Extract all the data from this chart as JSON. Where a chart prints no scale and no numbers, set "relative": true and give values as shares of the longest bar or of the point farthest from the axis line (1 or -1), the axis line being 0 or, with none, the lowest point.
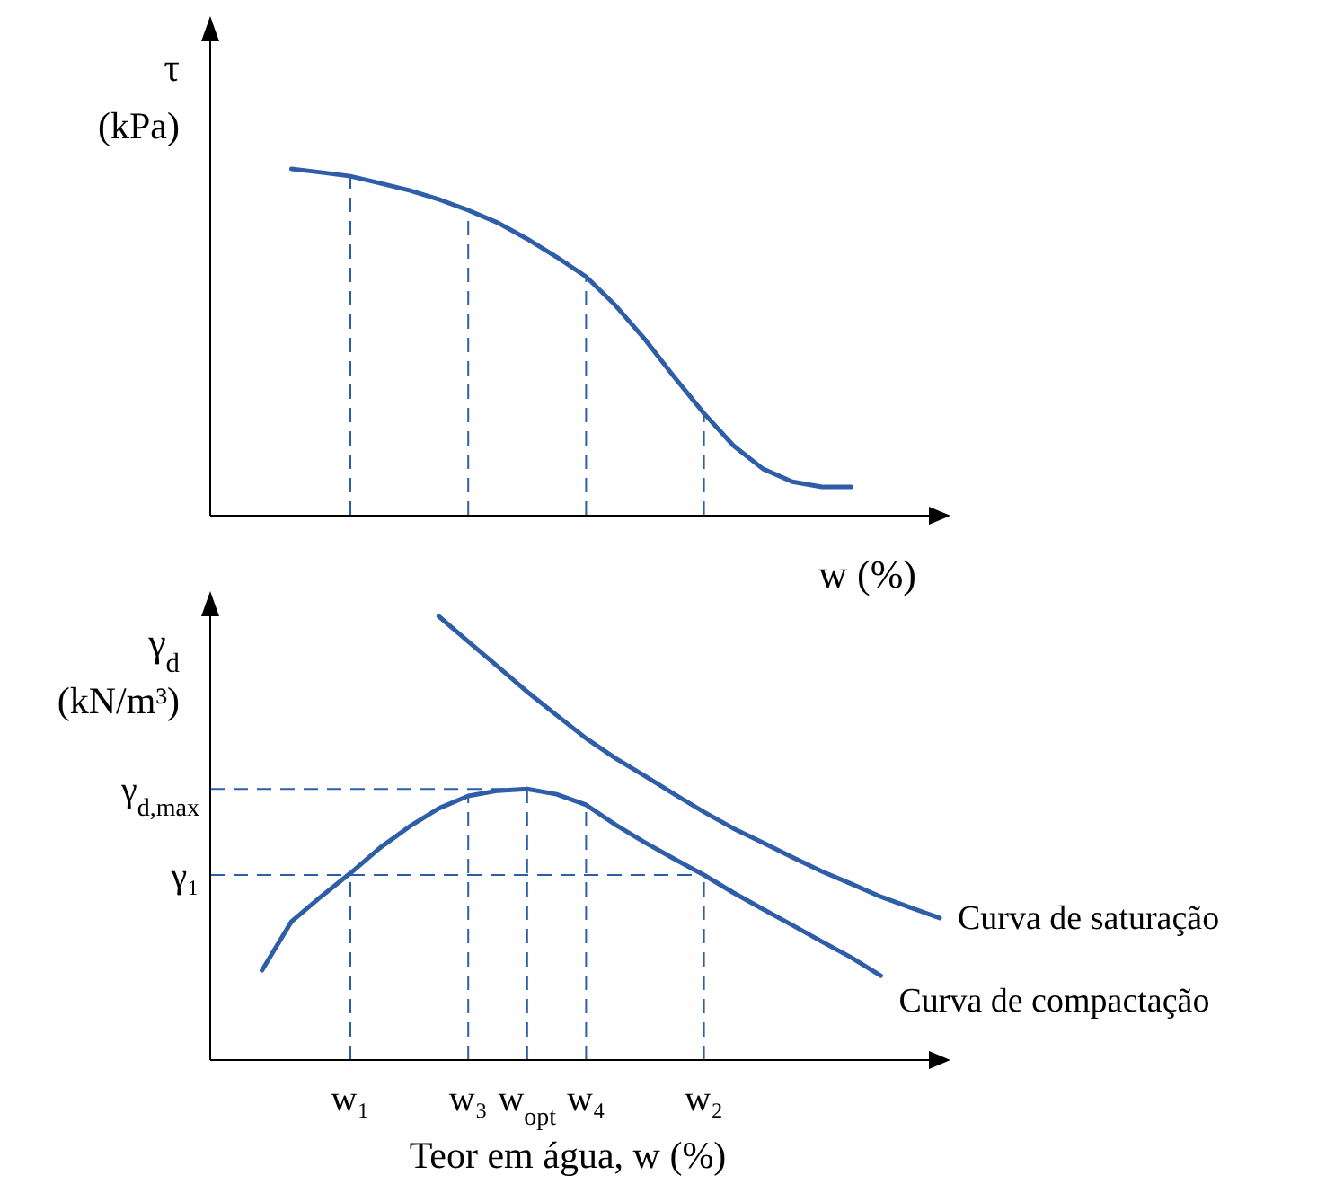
{
  "chart_data": [
    {
      "type": "line",
      "relative": true,
      "ylabel": "τ (kPa)",
      "xlabel": "w (%)",
      "tick_labels": false,
      "marker": "none",
      "line_style": "solid",
      "categories": [
        null,
        null,
        null,
        null,
        "w₁",
        null,
        null,
        null,
        "w₃",
        null,
        "w$_{opt}$",
        null,
        "w₄",
        null,
        null,
        null,
        "w₂",
        null,
        null,
        null,
        null,
        null,
        null,
        null,
        null
      ],
      "series": [
        {
          "color": "#2e5ea8",
          "values": [
            null,
            null,
            1.0,
            0.99,
            0.979,
            0.959,
            0.938,
            0.912,
            0.881,
            0.845,
            0.798,
            0.746,
            0.689,
            0.606,
            0.508,
            0.399,
            0.295,
            0.202,
            0.135,
            0.098,
            0.083,
            0.083,
            null,
            null,
            null
          ]
        }
      ],
      "ref_lines": [
        {
          "axis": "x",
          "value": "w₁",
          "color": "#2e5ea8",
          "line_style": "dashed"
        },
        {
          "axis": "x",
          "value": "w₃",
          "color": "#2e5ea8",
          "line_style": "dashed"
        },
        {
          "axis": "x",
          "value": "w₄",
          "color": "#2e5ea8",
          "line_style": "dashed"
        },
        {
          "axis": "x",
          "value": "w₂",
          "color": "#2e5ea8",
          "line_style": "dashed"
        }
      ]
    },
    {
      "type": "line",
      "relative": true,
      "ylabel": "γ$_{d}$ (kN/m³)",
      "xlabel": "Teor em água, w (%)",
      "marker": "none",
      "line_style": "solid",
      "categories": [
        null,
        null,
        null,
        null,
        "w₁",
        null,
        null,
        null,
        "w₃",
        null,
        "w$_{opt}$",
        null,
        "w₄",
        null,
        null,
        null,
        "w₂",
        null,
        null,
        null,
        null,
        null,
        null,
        null,
        null
      ],
      "series": [
        {
          "name": "Curva de compactação",
          "color": "#2e5ea8",
          "values": [
            null,
            0.202,
            0.312,
            0.368,
            0.421,
            0.478,
            0.526,
            0.567,
            0.595,
            0.607,
            0.611,
            0.599,
            0.575,
            0.53,
            0.49,
            0.453,
            0.417,
            0.377,
            0.34,
            0.304,
            0.267,
            0.231,
            0.19,
            null,
            null
          ]
        },
        {
          "name": "Curva de saturação",
          "color": "#2e5ea8",
          "values": [
            null,
            null,
            null,
            null,
            null,
            null,
            null,
            1.0,
            0.943,
            0.887,
            0.83,
            0.777,
            0.725,
            0.68,
            0.64,
            0.599,
            0.559,
            0.522,
            0.49,
            0.457,
            0.425,
            0.397,
            0.368,
            0.344,
            0.32
          ]
        }
      ],
      "ref_lines": [
        {
          "axis": "y",
          "value": 0.611,
          "label": "γ$_{d,max}$",
          "color": "#2e5ea8",
          "line_style": "dashed"
        },
        {
          "axis": "y",
          "value": 0.417,
          "label": "γ₁",
          "color": "#2e5ea8",
          "line_style": "dashed"
        },
        {
          "axis": "x",
          "value": "w₁",
          "color": "#2e5ea8",
          "line_style": "dashed"
        },
        {
          "axis": "x",
          "value": "w₃",
          "color": "#2e5ea8",
          "line_style": "dashed"
        },
        {
          "axis": "x",
          "value": "w$_{opt}$",
          "color": "#2e5ea8",
          "line_style": "dashed"
        },
        {
          "axis": "x",
          "value": "w₄",
          "color": "#2e5ea8",
          "line_style": "dashed"
        },
        {
          "axis": "x",
          "value": "w₂",
          "color": "#2e5ea8",
          "line_style": "dashed"
        }
      ]
    }
  ]
}
